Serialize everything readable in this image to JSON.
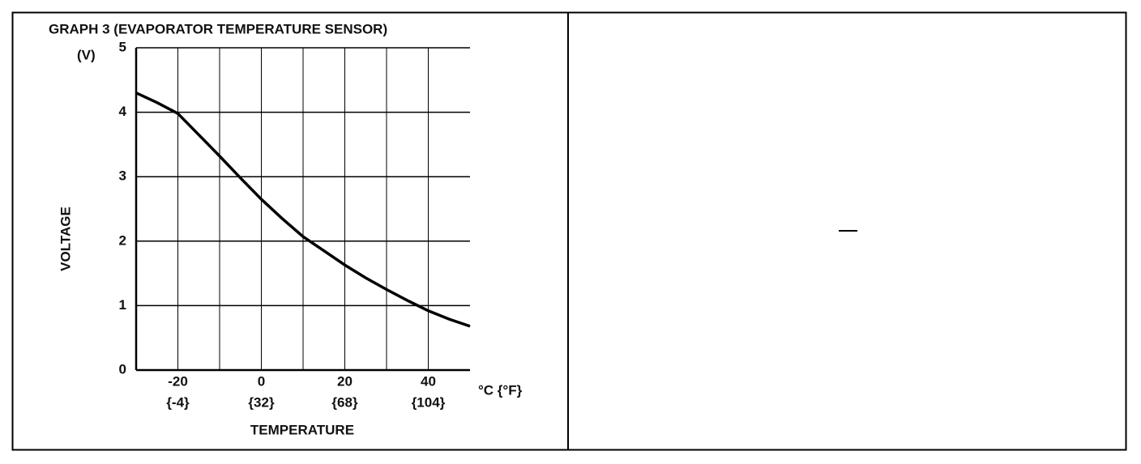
{
  "chart_data": {
    "type": "line",
    "title": "GRAPH 3 (EVAPORATOR TEMPERATURE SENSOR)",
    "y_unit": "(V)",
    "ylabel": "VOLTAGE",
    "xlabel": "TEMPERATURE",
    "x_unit": "°C {°F}",
    "xlim": [
      -30,
      50
    ],
    "ylim": [
      0,
      5
    ],
    "xticks": [
      -20,
      0,
      20,
      40
    ],
    "xtick_secondary_labels": [
      "{-4}",
      "{32}",
      "{68}",
      "{104}"
    ],
    "x_minor_grid": [
      -10,
      10,
      30
    ],
    "yticks": [
      0,
      1,
      2,
      3,
      4,
      5
    ],
    "grid": true,
    "color": "#000000",
    "x": [
      -30,
      -25,
      -20,
      -15,
      -10,
      -5,
      0,
      5,
      10,
      15,
      20,
      25,
      30,
      35,
      40,
      45,
      50
    ],
    "values": [
      4.3,
      4.15,
      3.98,
      3.65,
      3.32,
      2.98,
      2.65,
      2.35,
      2.07,
      1.85,
      1.63,
      1.43,
      1.25,
      1.08,
      0.92,
      0.79,
      0.68
    ]
  }
}
